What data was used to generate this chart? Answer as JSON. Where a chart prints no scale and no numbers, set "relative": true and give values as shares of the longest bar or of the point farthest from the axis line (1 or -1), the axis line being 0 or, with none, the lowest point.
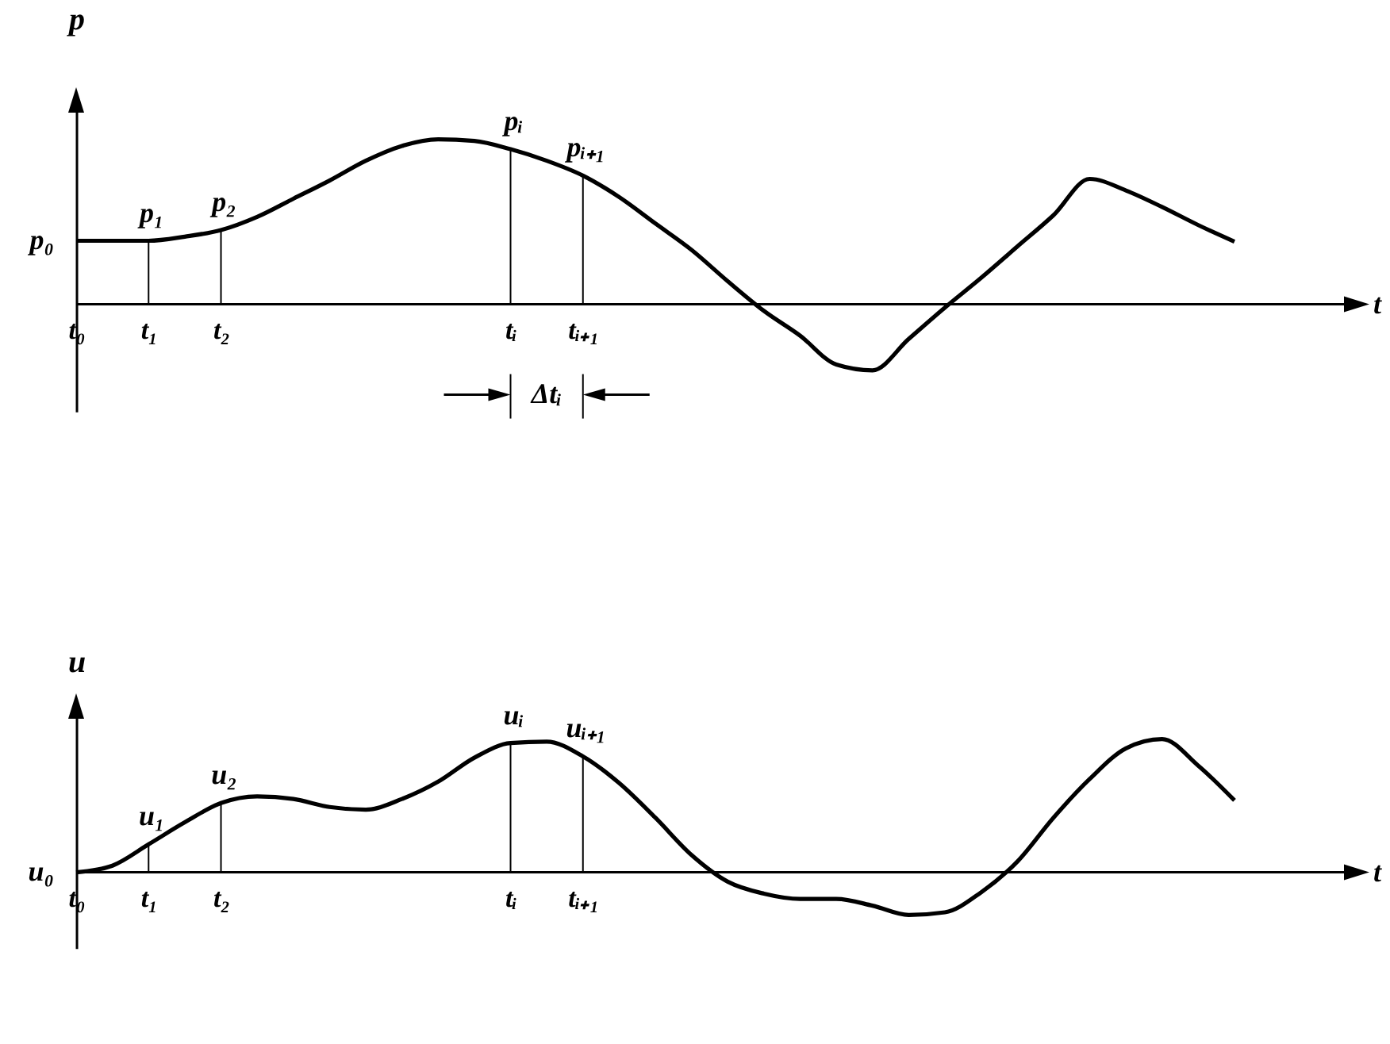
{
  "chart_data": [
    {
      "type": "line",
      "relative": true,
      "ylabel": "p",
      "xlabel": "t",
      "categories": [
        "t₀",
        null,
        "t₁",
        null,
        "t₂",
        null,
        null,
        null,
        null,
        null,
        null,
        null,
        "tᵢ",
        null,
        "tᵢ₊₁",
        null,
        null,
        null,
        null,
        null,
        null,
        null,
        null,
        null,
        null,
        null,
        null,
        null,
        null,
        null,
        null,
        null,
        null
      ],
      "series": [
        {
          "color": "#000000",
          "values": [
            0.385,
            0.385,
            0.385,
            0.41,
            0.45,
            0.53,
            0.64,
            0.75,
            0.87,
            0.96,
            1.0,
            0.99,
            0.94,
            0.87,
            0.78,
            0.65,
            0.49,
            0.33,
            0.14,
            -0.04,
            -0.19,
            -0.365,
            -0.4,
            -0.21,
            -0.02,
            0.16,
            0.35,
            0.54,
            0.76,
            0.69,
            0.59,
            0.48,
            0.38
          ]
        }
      ],
      "annotations": [
        {
          "text": "p₀",
          "x": "t₀",
          "y": 0.385
        },
        {
          "text": "p₁",
          "x": "t₁",
          "y": 0.385
        },
        {
          "text": "p₂",
          "x": "t₂",
          "y": 0.45
        },
        {
          "text": "pᵢ",
          "x": "tᵢ",
          "y": 0.94
        },
        {
          "text": "pᵢ₊₁",
          "x": "tᵢ₊₁",
          "y": 0.78
        },
        "Δtᵢ"
      ]
    },
    {
      "type": "line",
      "relative": true,
      "ylabel": "u",
      "xlabel": "t",
      "categories": [
        "t₀",
        null,
        "t₁",
        null,
        "t₂",
        null,
        null,
        null,
        null,
        null,
        null,
        null,
        "tᵢ",
        null,
        "tᵢ₊₁",
        null,
        null,
        null,
        null,
        null,
        null,
        null,
        null,
        null,
        null,
        null,
        null,
        null,
        null,
        null,
        null,
        null,
        null
      ],
      "series": [
        {
          "color": "#000000",
          "values": [
            0,
            0.05,
            0.21,
            0.375,
            0.52,
            0.57,
            0.55,
            0.49,
            0.47,
            0.55,
            0.68,
            0.86,
            0.97,
            0.98,
            0.87,
            0.67,
            0.41,
            0.13,
            -0.07,
            -0.16,
            -0.2,
            -0.2,
            -0.25,
            -0.32,
            -0.3,
            -0.15,
            0.08,
            0.41,
            0.7,
            0.93,
            1.0,
            0.8,
            0.54
          ]
        }
      ],
      "annotations": [
        {
          "text": "u₀",
          "x": "t₀",
          "y": 0
        },
        {
          "text": "u₁",
          "x": "t₁",
          "y": 0.21
        },
        {
          "text": "u₂",
          "x": "t₂",
          "y": 0.52
        },
        {
          "text": "uᵢ",
          "x": "tᵢ",
          "y": 0.97
        },
        {
          "text": "uᵢ₊₁",
          "x": "tᵢ₊₁",
          "y": 0.87
        }
      ]
    }
  ]
}
